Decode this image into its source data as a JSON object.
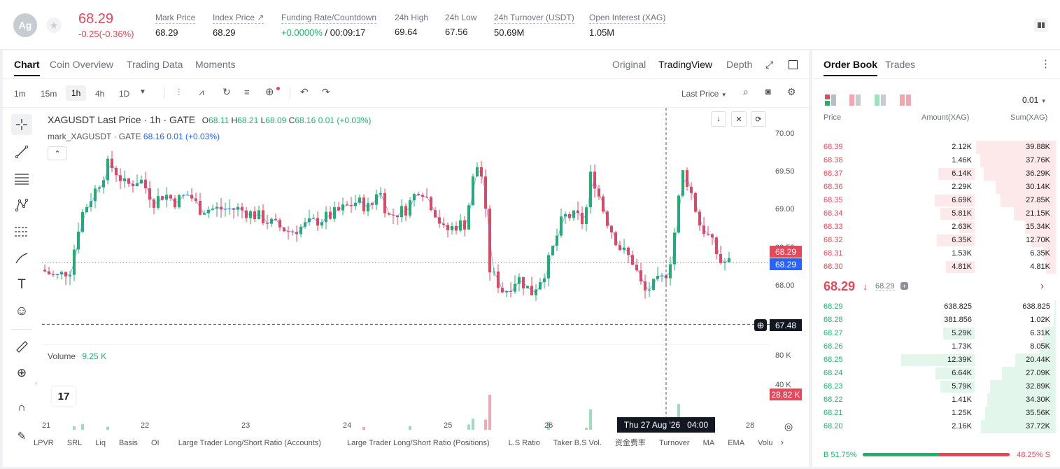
{
  "ticker": {
    "logo": "Ag",
    "price": "68.29",
    "change": "-0.25(-0.36%)"
  },
  "stats": [
    {
      "label": "Mark Price",
      "value": "68.29"
    },
    {
      "label": "Index Price ↗",
      "value": "68.29"
    },
    {
      "label": "Funding Rate/Countdown",
      "rate": "+0.0000%",
      "countdown": " / 00:09:17"
    },
    {
      "label": "24h High",
      "value": "69.64"
    },
    {
      "label": "24h Low",
      "value": "67.56"
    },
    {
      "label": "24h Turnover (USDT)",
      "value": "50.69M"
    },
    {
      "label": "Open Interest (XAG)",
      "value": "1.05M"
    }
  ],
  "chart_tabs": [
    "Chart",
    "Coin Overview",
    "Trading Data",
    "Moments"
  ],
  "view_tabs": [
    "Original",
    "TradingView",
    "Depth"
  ],
  "intervals": [
    "1m",
    "15m",
    "1h",
    "4h",
    "1D"
  ],
  "toolbar": {
    "last_price": "Last Price"
  },
  "legend": {
    "symbol": "XAGUSDT Last Price · 1h · GATE",
    "o_label": "O",
    "o": "68.11",
    "h_label": "H",
    "h": "68.21",
    "l_label": "L",
    "l": "68.09",
    "c_label": "C",
    "c": "68.16",
    "chg": "0.01 (+0.03%)",
    "mark": "mark_XAGUSDT · GATE",
    "mark_val": "68.16  0.01 (+0.03%)"
  },
  "volume": {
    "label": "Volume",
    "value": "9.25 K"
  },
  "price_axis": [
    "70.00",
    "69.50",
    "69.00",
    "68.50",
    "68.00"
  ],
  "vol_axis": [
    "80 K",
    "40 K"
  ],
  "tags": {
    "last": "68.29",
    "mark": "68.29",
    "cross": "67.48",
    "vol": "28.82 K"
  },
  "date_axis": [
    "21",
    "22",
    "23",
    "24",
    "25",
    "26",
    "28"
  ],
  "crosshair_time": "Thu 27 Aug '26   04:00",
  "tv_logo": "17",
  "bottom_tools": [
    "LPVR",
    "SRL",
    "Liq",
    "Basis",
    "OI",
    "Large Trader Long/Short Ratio (Accounts)",
    "Large Trader Long/Short Ratio (Positions)",
    "L.S Ratio",
    "Taker B.S Vol.",
    "资金费率",
    "Turnover",
    "MA",
    "EMA",
    "Volu"
  ],
  "orderbook": {
    "tabs": [
      "Order Book",
      "Trades"
    ],
    "precision": "0.01",
    "headers": [
      "Price",
      "Amount(XAG)",
      "Sum(XAG)"
    ],
    "asks": [
      [
        "68.39",
        "2.12K",
        "39.88K"
      ],
      [
        "68.38",
        "1.46K",
        "37.76K"
      ],
      [
        "68.37",
        "6.14K",
        "36.29K"
      ],
      [
        "68.36",
        "2.29K",
        "30.14K"
      ],
      [
        "68.35",
        "6.69K",
        "27.85K"
      ],
      [
        "68.34",
        "5.81K",
        "21.15K"
      ],
      [
        "68.33",
        "2.63K",
        "15.34K"
      ],
      [
        "68.32",
        "6.35K",
        "12.70K"
      ],
      [
        "68.31",
        "1.53K",
        "6.35K"
      ],
      [
        "68.30",
        "4.81K",
        "4.81K"
      ]
    ],
    "mid_price": "68.29",
    "mid_mark": "68.29",
    "bids": [
      [
        "68.29",
        "638.825",
        "638.825"
      ],
      [
        "68.28",
        "381.856",
        "1.02K"
      ],
      [
        "68.27",
        "5.29K",
        "6.31K"
      ],
      [
        "68.26",
        "1.73K",
        "8.05K"
      ],
      [
        "68.25",
        "12.39K",
        "20.44K"
      ],
      [
        "68.24",
        "6.64K",
        "27.09K"
      ],
      [
        "68.23",
        "5.79K",
        "32.89K"
      ],
      [
        "68.22",
        "1.41K",
        "34.30K"
      ],
      [
        "68.21",
        "1.25K",
        "35.56K"
      ],
      [
        "68.20",
        "2.16K",
        "37.72K"
      ]
    ],
    "buy_ratio": "B 51.75%",
    "sell_ratio": "48.25% S",
    "buy_pct": 51.75
  },
  "colors": {
    "up": "#20b26c",
    "down": "#e5475b",
    "ask_bg": "#fde8ea",
    "bid_bg": "#e3f6ec"
  }
}
